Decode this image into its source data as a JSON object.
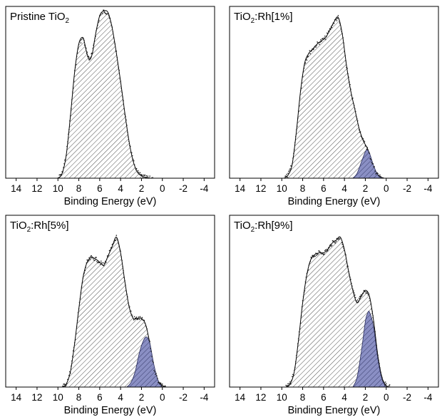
{
  "colors": {
    "frame": "#000000",
    "envelope_hatch": "#3a3a3a",
    "envelope_fill": "#ffffff",
    "rh_fill": "#8a8fc4",
    "rh_hatch": "#2b2f5e",
    "data_points": "#1a1a1a"
  },
  "chart_data": [
    {
      "type": "area",
      "title": "Pristine TiO",
      "title_sub": "2",
      "title_rest": "",
      "xlabel": "Binding Energy (eV)",
      "ylabel": "",
      "xlim": [
        15,
        -5
      ],
      "x_reversed": true,
      "ylim": [
        0,
        1.1
      ],
      "x_ticks": [
        14,
        12,
        10,
        8,
        6,
        4,
        2,
        0,
        -2,
        -4
      ],
      "x_tick_labels": [
        "14",
        "12",
        "10",
        "8",
        "6",
        "4",
        "2",
        "0",
        "-2",
        "-4"
      ],
      "grid": false,
      "series": [
        {
          "role": "envelope",
          "x": [
            10,
            9.6,
            9.2,
            8.8,
            8.4,
            8.0,
            7.6,
            7.3,
            7.0,
            6.7,
            6.4,
            6.0,
            5.6,
            5.2,
            4.8,
            4.4,
            4.0,
            3.6,
            3.2,
            2.8,
            2.4,
            2.0,
            1.6,
            1.2,
            0.8
          ],
          "y": [
            0.0,
            0.03,
            0.15,
            0.4,
            0.68,
            0.86,
            0.9,
            0.82,
            0.76,
            0.8,
            0.92,
            1.04,
            1.07,
            1.06,
            0.96,
            0.8,
            0.62,
            0.42,
            0.24,
            0.11,
            0.04,
            0.015,
            0.005,
            0.0,
            0.0
          ]
        }
      ]
    },
    {
      "type": "area",
      "title": "TiO",
      "title_sub": "2",
      "title_rest": ":Rh[1%]",
      "xlabel": "Binding Energy (eV)",
      "ylabel": "",
      "xlim": [
        15,
        -5
      ],
      "x_reversed": true,
      "ylim": [
        0,
        1.1
      ],
      "x_ticks": [
        14,
        12,
        10,
        8,
        6,
        4,
        2,
        0,
        -2,
        -4
      ],
      "x_tick_labels": [
        "14",
        "12",
        "10",
        "8",
        "6",
        "4",
        "2",
        "0",
        "-2",
        "-4"
      ],
      "grid": false,
      "series": [
        {
          "role": "envelope",
          "x": [
            9.8,
            9.4,
            9.0,
            8.6,
            8.2,
            7.8,
            7.4,
            7.0,
            6.6,
            6.2,
            5.8,
            5.4,
            5.0,
            4.6,
            4.2,
            3.8,
            3.4,
            3.0,
            2.6,
            2.2,
            1.8,
            1.4,
            1.0,
            0.6,
            0.2
          ],
          "y": [
            0.0,
            0.02,
            0.09,
            0.3,
            0.56,
            0.74,
            0.8,
            0.83,
            0.86,
            0.88,
            0.9,
            0.95,
            1.0,
            1.03,
            0.92,
            0.72,
            0.56,
            0.44,
            0.32,
            0.24,
            0.19,
            0.11,
            0.04,
            0.01,
            0.0
          ]
        },
        {
          "role": "rh",
          "x": [
            3.2,
            2.8,
            2.4,
            2.0,
            1.8,
            1.6,
            1.2,
            0.8,
            0.4
          ],
          "y": [
            0.0,
            0.03,
            0.1,
            0.17,
            0.18,
            0.16,
            0.08,
            0.02,
            0.0
          ]
        }
      ]
    },
    {
      "type": "area",
      "title": "TiO",
      "title_sub": "2",
      "title_rest": ":Rh[5%]",
      "xlabel": "Binding Energy (eV)",
      "ylabel": "",
      "xlim": [
        15,
        -5
      ],
      "x_reversed": true,
      "ylim": [
        0,
        1.1
      ],
      "x_ticks": [
        14,
        12,
        10,
        8,
        6,
        4,
        2,
        0,
        -2,
        -4
      ],
      "x_tick_labels": [
        "14",
        "12",
        "10",
        "8",
        "6",
        "4",
        "2",
        "0",
        "-2",
        "-4"
      ],
      "grid": false,
      "series": [
        {
          "role": "envelope",
          "x": [
            9.6,
            9.2,
            8.8,
            8.4,
            8.0,
            7.6,
            7.2,
            6.8,
            6.4,
            6.0,
            5.6,
            5.2,
            4.8,
            4.4,
            4.0,
            3.6,
            3.2,
            2.8,
            2.4,
            2.0,
            1.6,
            1.2,
            0.8,
            0.4,
            0.0,
            -0.4
          ],
          "y": [
            0.0,
            0.02,
            0.1,
            0.28,
            0.5,
            0.7,
            0.8,
            0.83,
            0.82,
            0.8,
            0.78,
            0.84,
            0.9,
            0.96,
            0.86,
            0.68,
            0.52,
            0.44,
            0.44,
            0.44,
            0.4,
            0.28,
            0.12,
            0.04,
            0.01,
            0.0
          ]
        },
        {
          "role": "rh",
          "x": [
            3.4,
            3.0,
            2.6,
            2.2,
            1.8,
            1.5,
            1.2,
            0.8,
            0.4,
            0.0
          ],
          "y": [
            0.0,
            0.03,
            0.1,
            0.22,
            0.3,
            0.32,
            0.28,
            0.14,
            0.04,
            0.0
          ]
        }
      ]
    },
    {
      "type": "area",
      "title": "TiO",
      "title_sub": "2",
      "title_rest": ":Rh[9%]",
      "xlabel": "Binding Energy (eV)",
      "ylabel": "",
      "xlim": [
        15,
        -5
      ],
      "x_reversed": true,
      "ylim": [
        0,
        1.1
      ],
      "x_ticks": [
        14,
        12,
        10,
        8,
        6,
        4,
        2,
        0,
        -2,
        -4
      ],
      "x_tick_labels": [
        "14",
        "12",
        "10",
        "8",
        "6",
        "4",
        "2",
        "0",
        "-2",
        "-4"
      ],
      "grid": false,
      "series": [
        {
          "role": "envelope",
          "x": [
            9.6,
            9.2,
            8.8,
            8.4,
            8.0,
            7.6,
            7.2,
            6.8,
            6.4,
            6.0,
            5.6,
            5.2,
            4.8,
            4.4,
            4.0,
            3.6,
            3.2,
            2.8,
            2.4,
            2.0,
            1.6,
            1.2,
            0.8,
            0.4,
            0.0,
            -0.4
          ],
          "y": [
            0.0,
            0.02,
            0.1,
            0.3,
            0.54,
            0.72,
            0.82,
            0.85,
            0.86,
            0.86,
            0.88,
            0.92,
            0.94,
            0.96,
            0.88,
            0.74,
            0.62,
            0.54,
            0.58,
            0.62,
            0.58,
            0.42,
            0.2,
            0.06,
            0.01,
            0.0
          ]
        },
        {
          "role": "rh",
          "x": [
            3.2,
            2.8,
            2.4,
            2.0,
            1.8,
            1.6,
            1.2,
            0.8,
            0.4,
            0.0
          ],
          "y": [
            0.0,
            0.06,
            0.22,
            0.42,
            0.47,
            0.48,
            0.38,
            0.18,
            0.05,
            0.0
          ]
        }
      ]
    }
  ]
}
